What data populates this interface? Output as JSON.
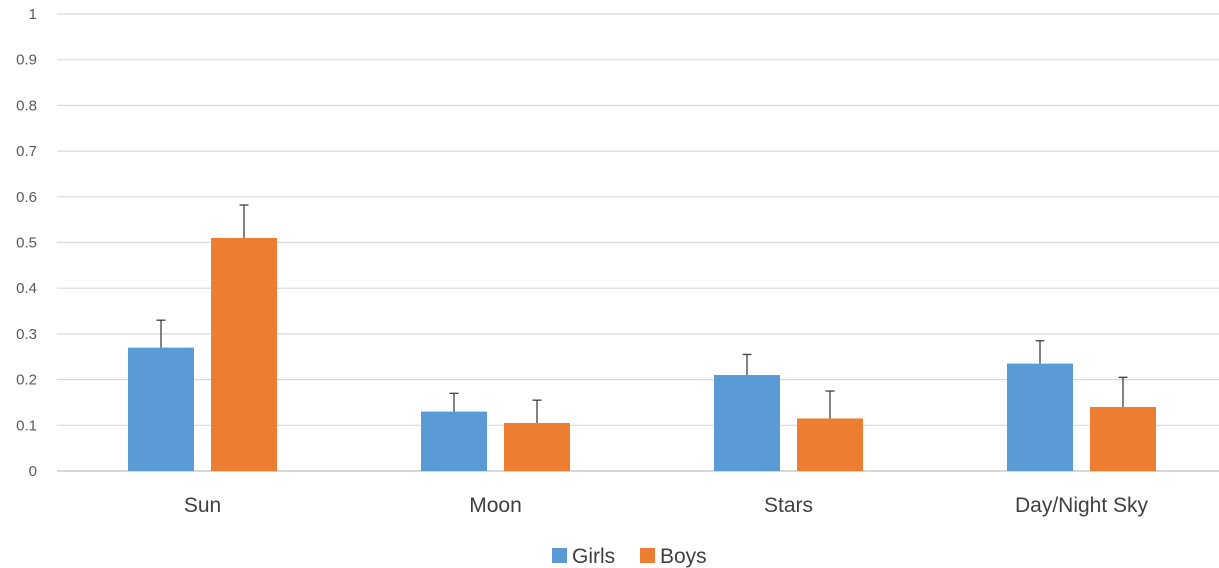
{
  "chart_data": {
    "type": "bar",
    "title": "",
    "xlabel": "",
    "ylabel": "",
    "ylim": [
      0,
      1
    ],
    "yticks": [
      "0",
      "0.1",
      "0.2",
      "0.3",
      "0.4",
      "0.5",
      "0.6",
      "0.7",
      "0.8",
      "0.9",
      "1"
    ],
    "categories": [
      "Sun",
      "Moon",
      "Stars",
      "Day/Night Sky"
    ],
    "series": [
      {
        "name": "Girls",
        "color": "#5B9BD5",
        "values": [
          0.27,
          0.13,
          0.21,
          0.235
        ],
        "error_plus": [
          0.06,
          0.04,
          0.045,
          0.05
        ]
      },
      {
        "name": "Boys",
        "color": "#ED7D31",
        "values": [
          0.51,
          0.105,
          0.115,
          0.14
        ],
        "error_plus": [
          0.072,
          0.05,
          0.06,
          0.065
        ]
      }
    ],
    "grid": true,
    "legend_position": "bottom"
  }
}
